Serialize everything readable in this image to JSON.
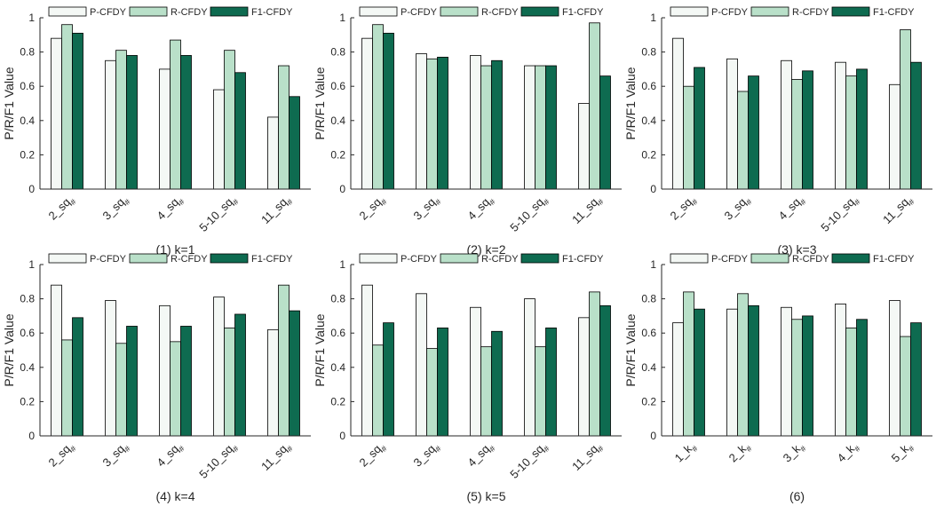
{
  "series_names": [
    "P-CFDY",
    "R-CFDY",
    "F1-CFDY"
  ],
  "colors": {
    "P-CFDY": "#f4f8f5",
    "R-CFDY": "#b9e0c9",
    "F1-CFDY": "#0e6b50",
    "edge": "#000000"
  },
  "chart_data": [
    {
      "type": "bar",
      "title": "(1) k=1",
      "ylabel": "P/R/F1 Value",
      "xlabel": "",
      "ylim": [
        0,
        1
      ],
      "yticks": [
        "0",
        "0.2",
        "0.4",
        "0.6",
        "0.8",
        "1"
      ],
      "legend": "top",
      "categories": [
        {
          "base": "2_sq",
          "sub": "#"
        },
        {
          "base": "3_sq",
          "sub": "#"
        },
        {
          "base": "4_sq",
          "sub": "#"
        },
        {
          "base": "5-10_sq",
          "sub": "#"
        },
        {
          "base": "11_sq",
          "sub": "#"
        }
      ],
      "series": [
        {
          "name": "P-CFDY",
          "values": [
            0.88,
            0.75,
            0.7,
            0.58,
            0.42
          ]
        },
        {
          "name": "R-CFDY",
          "values": [
            0.96,
            0.81,
            0.87,
            0.81,
            0.72
          ]
        },
        {
          "name": "F1-CFDY",
          "values": [
            0.91,
            0.78,
            0.78,
            0.68,
            0.54
          ]
        }
      ]
    },
    {
      "type": "bar",
      "title": "(2) k=2",
      "ylabel": "P/R/F1 Value",
      "xlabel": "",
      "ylim": [
        0,
        1
      ],
      "yticks": [
        "0",
        "0.2",
        "0.4",
        "0.6",
        "0.8",
        "1"
      ],
      "legend": "top",
      "categories": [
        {
          "base": "2_sq",
          "sub": "#"
        },
        {
          "base": "3_sq",
          "sub": "#"
        },
        {
          "base": "4_sq",
          "sub": "#"
        },
        {
          "base": "5-10_sq",
          "sub": "#"
        },
        {
          "base": "11_sq",
          "sub": "#"
        }
      ],
      "series": [
        {
          "name": "P-CFDY",
          "values": [
            0.88,
            0.79,
            0.78,
            0.72,
            0.5
          ]
        },
        {
          "name": "R-CFDY",
          "values": [
            0.96,
            0.76,
            0.72,
            0.72,
            0.97
          ]
        },
        {
          "name": "F1-CFDY",
          "values": [
            0.91,
            0.77,
            0.75,
            0.72,
            0.66
          ]
        }
      ]
    },
    {
      "type": "bar",
      "title": "(3) k=3",
      "ylabel": "P/R/F1 Value",
      "xlabel": "",
      "ylim": [
        0,
        1
      ],
      "yticks": [
        "0",
        "0.2",
        "0.4",
        "0.6",
        "0.8",
        "1"
      ],
      "legend": "top",
      "categories": [
        {
          "base": "2_sq",
          "sub": "#"
        },
        {
          "base": "3_sq",
          "sub": "#"
        },
        {
          "base": "4_sq",
          "sub": "#"
        },
        {
          "base": "5-10_sq",
          "sub": "#"
        },
        {
          "base": "11_sq",
          "sub": "#"
        }
      ],
      "series": [
        {
          "name": "P-CFDY",
          "values": [
            0.88,
            0.76,
            0.75,
            0.74,
            0.61
          ]
        },
        {
          "name": "R-CFDY",
          "values": [
            0.6,
            0.57,
            0.64,
            0.66,
            0.93
          ]
        },
        {
          "name": "F1-CFDY",
          "values": [
            0.71,
            0.66,
            0.69,
            0.7,
            0.74
          ]
        }
      ]
    },
    {
      "type": "bar",
      "title": "(4) k=4",
      "ylabel": "P/R/F1 Value",
      "xlabel": "",
      "ylim": [
        0,
        1
      ],
      "yticks": [
        "0",
        "0.2",
        "0.4",
        "0.6",
        "0.8",
        "1"
      ],
      "legend": "top",
      "categories": [
        {
          "base": "2_sq",
          "sub": "#"
        },
        {
          "base": "3_sq",
          "sub": "#"
        },
        {
          "base": "4_sq",
          "sub": "#"
        },
        {
          "base": "5-10_sq",
          "sub": "#"
        },
        {
          "base": "11_sq",
          "sub": "#"
        }
      ],
      "series": [
        {
          "name": "P-CFDY",
          "values": [
            0.88,
            0.79,
            0.76,
            0.81,
            0.62
          ]
        },
        {
          "name": "R-CFDY",
          "values": [
            0.56,
            0.54,
            0.55,
            0.63,
            0.88
          ]
        },
        {
          "name": "F1-CFDY",
          "values": [
            0.69,
            0.64,
            0.64,
            0.71,
            0.73
          ]
        }
      ]
    },
    {
      "type": "bar",
      "title": "(5) k=5",
      "ylabel": "P/R/F1 Value",
      "xlabel": "",
      "ylim": [
        0,
        1
      ],
      "yticks": [
        "0",
        "0.2",
        "0.4",
        "0.6",
        "0.8",
        "1"
      ],
      "legend": "top",
      "categories": [
        {
          "base": "2_sq",
          "sub": "#"
        },
        {
          "base": "3_sq",
          "sub": "#"
        },
        {
          "base": "4_sq",
          "sub": "#"
        },
        {
          "base": "5-10_sq",
          "sub": "#"
        },
        {
          "base": "11_sq",
          "sub": "#"
        }
      ],
      "series": [
        {
          "name": "P-CFDY",
          "values": [
            0.88,
            0.83,
            0.75,
            0.8,
            0.69
          ]
        },
        {
          "name": "R-CFDY",
          "values": [
            0.53,
            0.51,
            0.52,
            0.52,
            0.84
          ]
        },
        {
          "name": "F1-CFDY",
          "values": [
            0.66,
            0.63,
            0.61,
            0.63,
            0.76
          ]
        }
      ]
    },
    {
      "type": "bar",
      "title": "(6)",
      "ylabel": "P/R/F1 Value",
      "xlabel": "",
      "ylim": [
        0,
        1
      ],
      "yticks": [
        "0",
        "0.2",
        "0.4",
        "0.6",
        "0.8",
        "1"
      ],
      "legend": "top",
      "categories": [
        {
          "base": "1_k",
          "sub": "#"
        },
        {
          "base": "2_k",
          "sub": "#"
        },
        {
          "base": "3_k",
          "sub": "#"
        },
        {
          "base": "4_k",
          "sub": "#"
        },
        {
          "base": "5_k",
          "sub": "#"
        }
      ],
      "series": [
        {
          "name": "P-CFDY",
          "values": [
            0.66,
            0.74,
            0.75,
            0.77,
            0.79
          ]
        },
        {
          "name": "R-CFDY",
          "values": [
            0.84,
            0.83,
            0.68,
            0.63,
            0.58
          ]
        },
        {
          "name": "F1-CFDY",
          "values": [
            0.74,
            0.76,
            0.7,
            0.68,
            0.66
          ]
        }
      ]
    }
  ]
}
